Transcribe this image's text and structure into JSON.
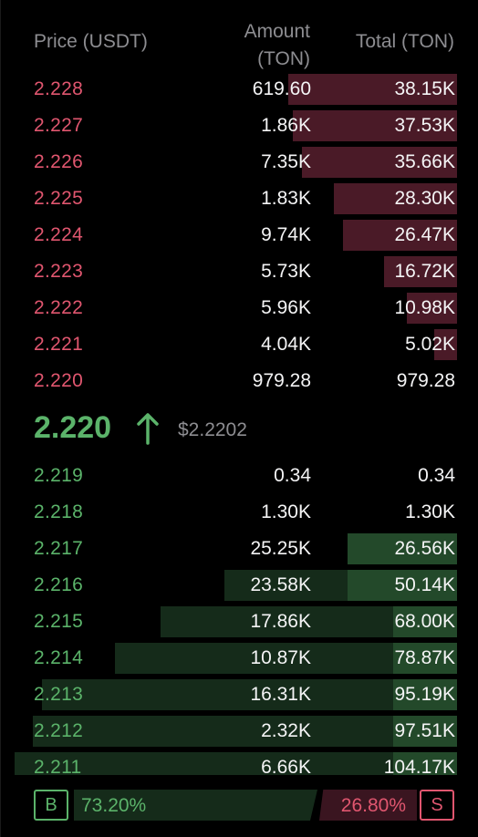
{
  "headers": {
    "price": "Price (USDT)",
    "amount_line1": "Amount",
    "amount_line2": "(TON)",
    "total": "Total (TON)"
  },
  "asks": [
    {
      "price": "2.228",
      "amount": "619.60",
      "total": "38.15K",
      "amount_depth": 0.0,
      "total_depth": 0.37
    },
    {
      "price": "2.227",
      "amount": "1.86K",
      "total": "37.53K",
      "amount_depth": 0.0,
      "total_depth": 0.36
    },
    {
      "price": "2.226",
      "amount": "7.35K",
      "total": "35.66K",
      "amount_depth": 0.0,
      "total_depth": 0.34
    },
    {
      "price": "2.225",
      "amount": "1.83K",
      "total": "28.30K",
      "amount_depth": 0.0,
      "total_depth": 0.27
    },
    {
      "price": "2.224",
      "amount": "9.74K",
      "total": "26.47K",
      "amount_depth": 0.0,
      "total_depth": 0.25
    },
    {
      "price": "2.223",
      "amount": "5.73K",
      "total": "16.72K",
      "amount_depth": 0.0,
      "total_depth": 0.16
    },
    {
      "price": "2.222",
      "amount": "5.96K",
      "total": "10.98K",
      "amount_depth": 0.0,
      "total_depth": 0.11
    },
    {
      "price": "2.221",
      "amount": "4.04K",
      "total": "5.02K",
      "amount_depth": 0.0,
      "total_depth": 0.05
    },
    {
      "price": "2.220",
      "amount": "979.28",
      "total": "979.28",
      "amount_depth": 0.0,
      "total_depth": 0.0
    }
  ],
  "mid": {
    "price": "2.220",
    "index_price": "$2.2202"
  },
  "bids": [
    {
      "price": "2.219",
      "amount": "0.34",
      "total": "0.34",
      "amount_depth": 0.0,
      "total_depth": 0.0
    },
    {
      "price": "2.218",
      "amount": "1.30K",
      "total": "1.30K",
      "amount_depth": 0.0,
      "total_depth": 0.0
    },
    {
      "price": "2.217",
      "amount": "25.25K",
      "total": "26.56K",
      "amount_depth": 0.0,
      "total_depth": 0.24
    },
    {
      "price": "2.216",
      "amount": "23.58K",
      "total": "50.14K",
      "amount_depth": 0.51,
      "total_depth": 0.24
    },
    {
      "price": "2.215",
      "amount": "17.86K",
      "total": "68.00K",
      "amount_depth": 0.65,
      "total_depth": 0.14
    },
    {
      "price": "2.214",
      "amount": "10.87K",
      "total": "78.87K",
      "amount_depth": 0.75,
      "total_depth": 0.14
    },
    {
      "price": "2.213",
      "amount": "16.31K",
      "total": "95.19K",
      "amount_depth": 0.91,
      "total_depth": 0.14
    },
    {
      "price": "2.212",
      "amount": "2.32K",
      "total": "97.51K",
      "amount_depth": 0.93,
      "total_depth": 0.14
    },
    {
      "price": "2.211",
      "amount": "6.66K",
      "total": "104.17K",
      "amount_depth": 0.97,
      "total_depth": 0.14
    }
  ],
  "ratio": {
    "buy_label": "B",
    "buy_pct": "73.20%",
    "sell_pct": "26.80%",
    "sell_label": "S",
    "buy_fraction": 0.732
  },
  "colors": {
    "ask": "#e0566f",
    "bid": "#5bb36a",
    "text": "#f4f4f5",
    "muted": "#8d8d91",
    "background": "#000000"
  },
  "icons": {
    "mid_direction": "arrow-up-icon"
  }
}
